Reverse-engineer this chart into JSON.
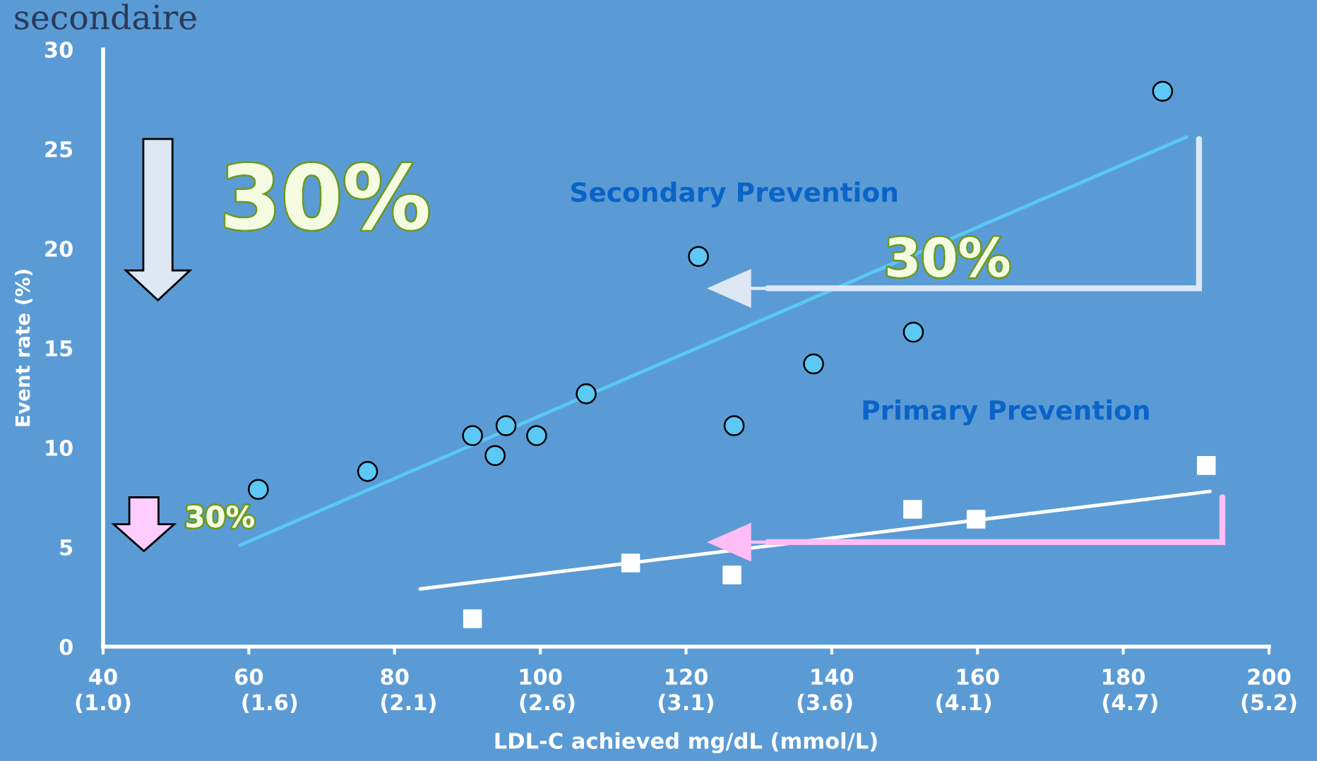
{
  "chart_data": {
    "type": "scatter",
    "title": "secondaire",
    "xlabel": "LDL-C achieved mg/dL (mmol/L)",
    "ylabel": "Event rate (%)",
    "xlim": [
      40,
      200
    ],
    "ylim": [
      0,
      30
    ],
    "xticks": [
      40,
      60,
      80,
      100,
      120,
      140,
      160,
      180,
      200
    ],
    "x2lim": [
      1.0,
      5.2
    ],
    "x2ticks": [
      {
        "value": 1.0,
        "label": "(1.0)"
      },
      {
        "value": 1.6,
        "label": "(1.6)"
      },
      {
        "value": 2.1,
        "label": "(2.1)"
      },
      {
        "value": 2.6,
        "label": "(2.6)"
      },
      {
        "value": 3.1,
        "label": "(3.1)"
      },
      {
        "value": 3.6,
        "label": "(3.6)"
      },
      {
        "value": 4.1,
        "label": "(4.1)"
      },
      {
        "value": 4.7,
        "label": "(4.7)"
      },
      {
        "value": 5.2,
        "label": "(5.2)"
      }
    ],
    "yticks": [
      0,
      5,
      10,
      15,
      20,
      25,
      30
    ],
    "grid": false,
    "legend": false,
    "series": [
      {
        "name": "Secondary Prevention",
        "marker": "circle",
        "color": "#5bc8f5",
        "x": [
          61.3,
          76.3,
          90.7,
          93.8,
          95.3,
          99.5,
          106.3,
          121.7,
          126.6,
          137.5,
          151.2,
          185.4
        ],
        "values": [
          7.9,
          8.8,
          10.6,
          9.6,
          11.1,
          10.6,
          12.7,
          19.6,
          11.1,
          14.2,
          15.8,
          27.9
        ]
      },
      {
        "name": "Primary Prevention",
        "marker": "square",
        "color": "#ffffff",
        "x": [
          90.7,
          112.4,
          126.3,
          151.1,
          159.8,
          191.4
        ],
        "values": [
          1.4,
          4.2,
          3.6,
          6.9,
          6.4,
          9.1
        ]
      },
      {
        "type": "line",
        "color": "#5bc8f5",
        "x": [
          58.8,
          188.7
        ],
        "values": [
          5.1,
          25.6
        ]
      },
      {
        "type": "line",
        "color": "#ffffff",
        "x": [
          83.5,
          191.9
        ],
        "values": [
          2.9,
          7.8
        ]
      }
    ],
    "annotations": [
      "30%",
      "30%",
      "30%"
    ]
  }
}
